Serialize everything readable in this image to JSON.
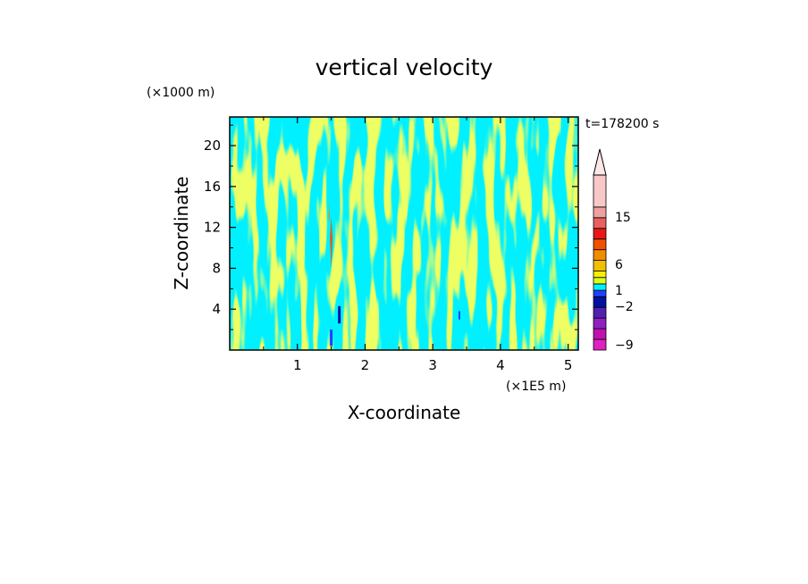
{
  "chart_data": {
    "type": "heatmap",
    "title": "vertical velocity",
    "xlabel": "X-coordinate",
    "ylabel": "Z-coordinate",
    "x_unit": "(×1E5 m)",
    "y_unit": "(×1000 m)",
    "time_label": "t=178200 s",
    "xlim": [
      0,
      5.15
    ],
    "ylim": [
      0,
      22.8
    ],
    "x_ticks": [
      "1",
      "2",
      "3",
      "4",
      "5"
    ],
    "y_ticks": [
      "4",
      "8",
      "12",
      "16",
      "20"
    ],
    "colorbar": {
      "labels": [
        "15",
        "6",
        "1",
        "−2",
        "−9"
      ],
      "levels": [
        {
          "bin": "<-12",
          "color": "#e020c0"
        },
        {
          "bin": "-12..-9",
          "color": "#c010b0"
        },
        {
          "bin": "-9..-6",
          "color": "#9020c0"
        },
        {
          "bin": "-6..-4",
          "color": "#5020b0"
        },
        {
          "bin": "-4..-2",
          "color": "#0010a0"
        },
        {
          "bin": "-2..-1",
          "color": "#2040ff"
        },
        {
          "bin": "-1..0",
          "color": "#00f0ff"
        },
        {
          "bin": "0..1",
          "color": "#d8ff20"
        },
        {
          "bin": "1..2",
          "color": "#f8f000"
        },
        {
          "bin": "2..4",
          "color": "#f0c000"
        },
        {
          "bin": "4..6",
          "color": "#f08c00"
        },
        {
          "bin": "6..9",
          "color": "#f05000"
        },
        {
          "bin": "9..12",
          "color": "#e81818"
        },
        {
          "bin": "12..15",
          "color": "#e86060"
        },
        {
          "bin": "15..18",
          "color": "#f0a0a0"
        },
        {
          "bin": ">18",
          "color": "#f8c8c8"
        }
      ]
    },
    "dominant_colors": {
      "negative": "#00f0ff",
      "positive": "#d8ff20"
    }
  }
}
